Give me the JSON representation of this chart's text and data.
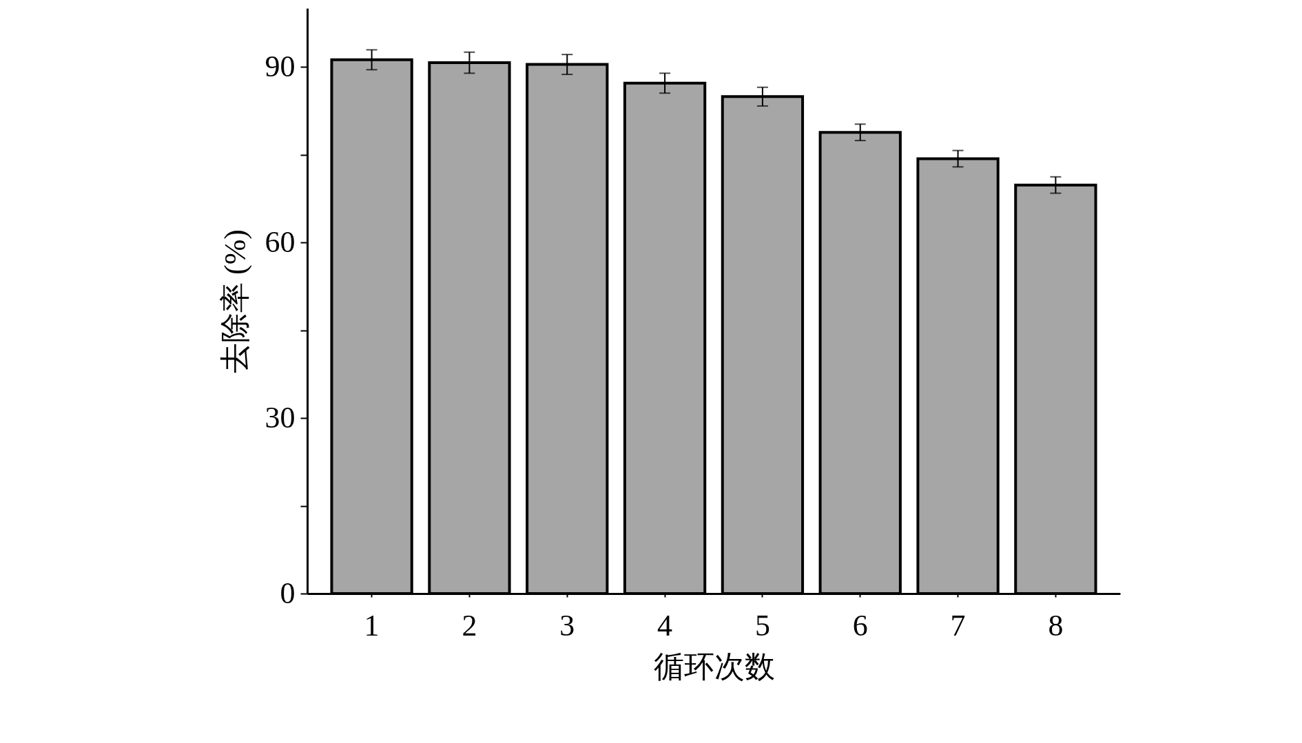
{
  "chart_data": {
    "type": "bar",
    "xlabel": "循环次数",
    "ylabel": "去除率 (%)",
    "categories": [
      "1",
      "2",
      "3",
      "4",
      "5",
      "6",
      "7",
      "8"
    ],
    "values": [
      91.2,
      90.7,
      90.4,
      87.2,
      84.9,
      78.8,
      74.3,
      69.8
    ],
    "errors": [
      1.7,
      1.8,
      1.7,
      1.7,
      1.6,
      1.4,
      1.4,
      1.4
    ],
    "color": "#a6a6a6",
    "ylim": [
      0,
      100
    ],
    "yticks": [
      0,
      {
        "value": 15,
        "label": null
      },
      30,
      {
        "value": 45,
        "label": null
      },
      60,
      {
        "value": 75,
        "label": null
      },
      90
    ],
    "grid": false
  }
}
